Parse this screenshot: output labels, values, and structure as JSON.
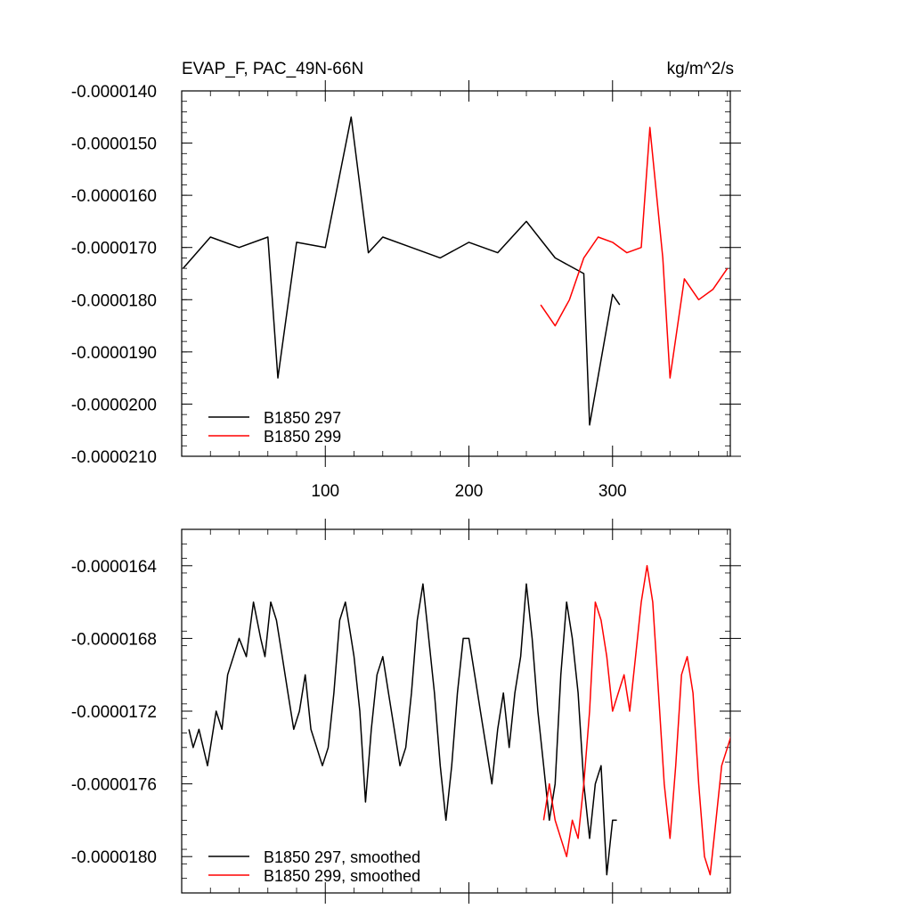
{
  "chart_data": [
    {
      "type": "line",
      "title": "EVAP_F, PAC_49N-66N",
      "units": "kg/m^2/s",
      "xlim": [
        0,
        382
      ],
      "ylim": [
        -2.1e-05,
        -1.4e-05
      ],
      "x_ticks": [
        100,
        200,
        300
      ],
      "x_tick_labels": [
        "100",
        "200",
        "300"
      ],
      "y_ticks": [
        -1.4e-05,
        -1.5e-05,
        -1.6e-05,
        -1.7e-05,
        -1.8e-05,
        -1.9e-05,
        -2e-05,
        -2.1e-05
      ],
      "y_tick_labels": [
        "-0.0000140",
        "-0.0000150",
        "-0.0000160",
        "-0.0000170",
        "-0.0000180",
        "-0.0000190",
        "-0.0000200",
        "-0.0000210"
      ],
      "grid": false,
      "legend_position": "bottom-left",
      "series": [
        {
          "name": "B1850 297",
          "color": "#000000",
          "x": [
            1,
            20,
            40,
            60,
            67,
            80,
            100,
            118,
            130,
            140,
            160,
            180,
            200,
            220,
            240,
            260,
            280,
            284,
            300,
            305
          ],
          "values": [
            -1.74e-05,
            -1.68e-05,
            -1.7e-05,
            -1.68e-05,
            -1.95e-05,
            -1.69e-05,
            -1.7e-05,
            -1.45e-05,
            -1.71e-05,
            -1.68e-05,
            -1.7e-05,
            -1.72e-05,
            -1.69e-05,
            -1.71e-05,
            -1.65e-05,
            -1.72e-05,
            -1.75e-05,
            -2.04e-05,
            -1.79e-05,
            -1.81e-05
          ]
        },
        {
          "name": "B1850 299",
          "color": "#ff0000",
          "x": [
            250,
            260,
            270,
            280,
            290,
            300,
            310,
            320,
            326,
            335,
            340,
            350,
            360,
            370,
            380
          ],
          "values": [
            -1.81e-05,
            -1.85e-05,
            -1.8e-05,
            -1.72e-05,
            -1.68e-05,
            -1.69e-05,
            -1.71e-05,
            -1.7e-05,
            -1.47e-05,
            -1.72e-05,
            -1.95e-05,
            -1.76e-05,
            -1.8e-05,
            -1.78e-05,
            -1.74e-05
          ]
        }
      ]
    },
    {
      "type": "line",
      "xlim": [
        0,
        382
      ],
      "ylim": [
        -1.82e-05,
        -1.62e-05
      ],
      "x_ticks": [
        100,
        200,
        300
      ],
      "y_ticks": [
        -1.64e-05,
        -1.68e-05,
        -1.72e-05,
        -1.76e-05,
        -1.8e-05
      ],
      "y_tick_labels": [
        "-0.0000164",
        "-0.0000168",
        "-0.0000172",
        "-0.0000176",
        "-0.0000180"
      ],
      "grid": false,
      "legend_position": "bottom-left",
      "series": [
        {
          "name": "B1850 297, smoothed",
          "color": "#000000",
          "x": [
            5,
            8,
            12,
            15,
            18,
            20,
            24,
            28,
            32,
            36,
            40,
            45,
            50,
            55,
            58,
            62,
            66,
            70,
            74,
            78,
            82,
            86,
            90,
            94,
            98,
            102,
            106,
            110,
            114,
            118,
            120,
            124,
            128,
            132,
            136,
            140,
            144,
            148,
            152,
            156,
            160,
            164,
            168,
            172,
            176,
            180,
            184,
            188,
            192,
            196,
            200,
            204,
            208,
            212,
            216,
            220,
            224,
            228,
            232,
            236,
            240,
            244,
            248,
            252,
            256,
            260,
            264,
            268,
            272,
            276,
            280,
            284,
            288,
            292,
            296,
            300,
            303
          ],
          "values": [
            -1.73e-05,
            -1.74e-05,
            -1.73e-05,
            -1.74e-05,
            -1.75e-05,
            -1.74e-05,
            -1.72e-05,
            -1.73e-05,
            -1.7e-05,
            -1.69e-05,
            -1.68e-05,
            -1.69e-05,
            -1.66e-05,
            -1.68e-05,
            -1.69e-05,
            -1.66e-05,
            -1.67e-05,
            -1.69e-05,
            -1.71e-05,
            -1.73e-05,
            -1.72e-05,
            -1.7e-05,
            -1.73e-05,
            -1.74e-05,
            -1.75e-05,
            -1.74e-05,
            -1.71e-05,
            -1.67e-05,
            -1.66e-05,
            -1.68e-05,
            -1.69e-05,
            -1.72e-05,
            -1.77e-05,
            -1.73e-05,
            -1.7e-05,
            -1.69e-05,
            -1.71e-05,
            -1.73e-05,
            -1.75e-05,
            -1.74e-05,
            -1.71e-05,
            -1.67e-05,
            -1.65e-05,
            -1.68e-05,
            -1.71e-05,
            -1.75e-05,
            -1.78e-05,
            -1.75e-05,
            -1.71e-05,
            -1.68e-05,
            -1.68e-05,
            -1.7e-05,
            -1.72e-05,
            -1.74e-05,
            -1.76e-05,
            -1.73e-05,
            -1.71e-05,
            -1.74e-05,
            -1.71e-05,
            -1.69e-05,
            -1.65e-05,
            -1.68e-05,
            -1.72e-05,
            -1.75e-05,
            -1.78e-05,
            -1.76e-05,
            -1.7e-05,
            -1.66e-05,
            -1.68e-05,
            -1.71e-05,
            -1.76e-05,
            -1.79e-05,
            -1.76e-05,
            -1.75e-05,
            -1.81e-05,
            -1.78e-05,
            -1.78e-05
          ]
        },
        {
          "name": "B1850 299, smoothed",
          "color": "#ff0000",
          "x": [
            252,
            256,
            260,
            264,
            268,
            272,
            276,
            280,
            284,
            288,
            292,
            296,
            300,
            304,
            308,
            312,
            316,
            320,
            324,
            328,
            332,
            336,
            340,
            344,
            348,
            352,
            356,
            360,
            364,
            368,
            372,
            376,
            380,
            384
          ],
          "values": [
            -1.78e-05,
            -1.76e-05,
            -1.78e-05,
            -1.79e-05,
            -1.8e-05,
            -1.78e-05,
            -1.79e-05,
            -1.76e-05,
            -1.72e-05,
            -1.66e-05,
            -1.67e-05,
            -1.69e-05,
            -1.72e-05,
            -1.71e-05,
            -1.7e-05,
            -1.72e-05,
            -1.69e-05,
            -1.66e-05,
            -1.64e-05,
            -1.66e-05,
            -1.71e-05,
            -1.76e-05,
            -1.79e-05,
            -1.75e-05,
            -1.7e-05,
            -1.69e-05,
            -1.71e-05,
            -1.76e-05,
            -1.8e-05,
            -1.81e-05,
            -1.78e-05,
            -1.75e-05,
            -1.74e-05,
            -1.73e-05
          ]
        }
      ]
    }
  ]
}
